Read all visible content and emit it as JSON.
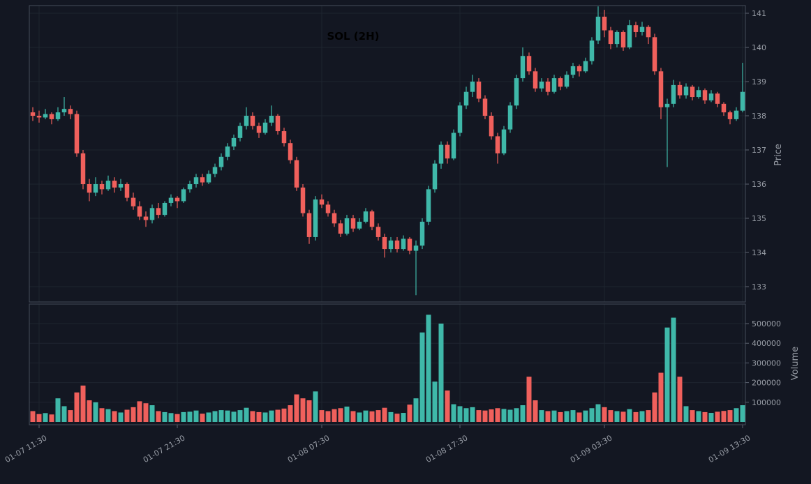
{
  "chart_data": {
    "type": "candlestick",
    "title": "SOL (2H)",
    "symbol": "SOL",
    "interval": "2H",
    "price_axis": {
      "label": "Price",
      "side": "right",
      "ticks": [
        133,
        134,
        135,
        136,
        137,
        138,
        139,
        140,
        141
      ],
      "ylim": [
        132.55,
        141.3
      ]
    },
    "volume_axis": {
      "label": "Volume",
      "side": "right",
      "ticks": [
        100000,
        200000,
        300000,
        400000,
        500000
      ],
      "ylim": [
        0,
        600000
      ]
    },
    "x_axis": {
      "tick_labels": [
        "01-07 11:30",
        "01-07 21:30",
        "01-08 07:30",
        "01-08 17:30",
        "01-09 03:30",
        "01-09 13:30"
      ],
      "tick_candle_indices": [
        1,
        23,
        46,
        68,
        91,
        113
      ],
      "label_rotation_deg": 30
    },
    "colors": {
      "up": "#3fb8a9",
      "down": "#f0605c",
      "background": "#131722",
      "grid": "#1e242f",
      "spine": "#454c59",
      "tick_dash": "#5c6370",
      "tick_text": "#989da6",
      "title_text": "#000000"
    },
    "candle_fields": [
      "open",
      "high",
      "low",
      "close",
      "volume"
    ],
    "candles": [
      [
        138.1,
        138.25,
        137.85,
        138.0,
        55000
      ],
      [
        138.0,
        138.15,
        137.8,
        137.95,
        40000
      ],
      [
        137.95,
        138.2,
        137.9,
        138.05,
        45000
      ],
      [
        138.05,
        138.1,
        137.75,
        137.9,
        38000
      ],
      [
        137.9,
        138.25,
        137.85,
        138.1,
        120000
      ],
      [
        138.1,
        138.55,
        138.0,
        138.2,
        80000
      ],
      [
        138.2,
        138.3,
        137.9,
        138.05,
        60000
      ],
      [
        138.05,
        138.15,
        136.8,
        136.9,
        150000
      ],
      [
        136.9,
        137.0,
        135.85,
        136.0,
        185000
      ],
      [
        136.0,
        136.15,
        135.5,
        135.75,
        110000
      ],
      [
        135.75,
        136.2,
        135.65,
        136.0,
        100000
      ],
      [
        136.0,
        136.1,
        135.7,
        135.85,
        70000
      ],
      [
        135.85,
        136.25,
        135.8,
        136.1,
        65000
      ],
      [
        136.1,
        136.2,
        135.75,
        135.9,
        55000
      ],
      [
        135.9,
        136.15,
        135.8,
        136.0,
        48000
      ],
      [
        136.0,
        136.05,
        135.5,
        135.6,
        62000
      ],
      [
        135.6,
        135.75,
        135.25,
        135.35,
        75000
      ],
      [
        135.35,
        135.5,
        134.95,
        135.05,
        105000
      ],
      [
        135.05,
        135.2,
        134.75,
        134.95,
        95000
      ],
      [
        134.95,
        135.4,
        134.85,
        135.3,
        85000
      ],
      [
        135.3,
        135.45,
        135.0,
        135.1,
        55000
      ],
      [
        135.1,
        135.5,
        135.05,
        135.45,
        50000
      ],
      [
        135.45,
        135.7,
        135.35,
        135.6,
        45000
      ],
      [
        135.6,
        135.65,
        135.3,
        135.5,
        40000
      ],
      [
        135.5,
        135.9,
        135.45,
        135.85,
        50000
      ],
      [
        135.85,
        136.1,
        135.75,
        136.0,
        52000
      ],
      [
        136.0,
        136.3,
        135.9,
        136.2,
        58000
      ],
      [
        136.2,
        136.3,
        135.95,
        136.05,
        42000
      ],
      [
        136.05,
        136.4,
        136.0,
        136.3,
        48000
      ],
      [
        136.3,
        136.6,
        136.2,
        136.5,
        55000
      ],
      [
        136.5,
        136.9,
        136.4,
        136.8,
        60000
      ],
      [
        136.8,
        137.2,
        136.7,
        137.1,
        58000
      ],
      [
        137.1,
        137.45,
        137.0,
        137.35,
        52000
      ],
      [
        137.35,
        137.8,
        137.25,
        137.7,
        60000
      ],
      [
        137.7,
        138.25,
        137.6,
        138.0,
        72000
      ],
      [
        138.0,
        138.1,
        137.6,
        137.7,
        55000
      ],
      [
        137.7,
        137.8,
        137.35,
        137.5,
        50000
      ],
      [
        137.5,
        137.9,
        137.45,
        137.8,
        48000
      ],
      [
        137.8,
        138.3,
        137.7,
        138.0,
        58000
      ],
      [
        138.0,
        138.05,
        137.45,
        137.55,
        62000
      ],
      [
        137.55,
        137.65,
        137.1,
        137.2,
        68000
      ],
      [
        137.2,
        137.3,
        136.6,
        136.7,
        85000
      ],
      [
        136.7,
        136.8,
        135.8,
        135.9,
        140000
      ],
      [
        135.9,
        136.0,
        135.05,
        135.15,
        120000
      ],
      [
        135.15,
        135.25,
        134.25,
        134.45,
        110000
      ],
      [
        134.45,
        135.65,
        134.35,
        135.55,
        155000
      ],
      [
        135.55,
        135.7,
        135.3,
        135.4,
        60000
      ],
      [
        135.4,
        135.5,
        135.05,
        135.15,
        55000
      ],
      [
        135.15,
        135.25,
        134.75,
        134.85,
        65000
      ],
      [
        134.85,
        134.95,
        134.45,
        134.55,
        70000
      ],
      [
        134.55,
        135.1,
        134.5,
        135.0,
        78000
      ],
      [
        135.0,
        135.1,
        134.6,
        134.7,
        55000
      ],
      [
        134.7,
        135.0,
        134.65,
        134.9,
        48000
      ],
      [
        134.9,
        135.3,
        134.85,
        135.2,
        58000
      ],
      [
        135.2,
        135.25,
        134.65,
        134.75,
        54000
      ],
      [
        134.75,
        134.85,
        134.35,
        134.45,
        60000
      ],
      [
        134.45,
        134.55,
        133.85,
        134.1,
        72000
      ],
      [
        134.1,
        134.45,
        134.0,
        134.35,
        50000
      ],
      [
        134.35,
        134.45,
        134.0,
        134.1,
        42000
      ],
      [
        134.1,
        134.5,
        134.05,
        134.4,
        46000
      ],
      [
        134.4,
        134.45,
        133.95,
        134.05,
        88000
      ],
      [
        134.05,
        134.35,
        132.75,
        134.2,
        120000
      ],
      [
        134.2,
        135.0,
        134.1,
        134.9,
        455000
      ],
      [
        134.9,
        135.95,
        134.8,
        135.85,
        545000
      ],
      [
        135.85,
        136.7,
        135.75,
        136.6,
        205000
      ],
      [
        136.6,
        137.25,
        136.45,
        137.15,
        500000
      ],
      [
        137.15,
        137.25,
        136.6,
        136.75,
        160000
      ],
      [
        136.75,
        137.6,
        136.7,
        137.5,
        90000
      ],
      [
        137.5,
        138.4,
        137.4,
        138.3,
        80000
      ],
      [
        138.3,
        138.85,
        138.2,
        138.7,
        70000
      ],
      [
        138.7,
        139.2,
        138.55,
        139.0,
        75000
      ],
      [
        139.0,
        139.1,
        138.4,
        138.5,
        60000
      ],
      [
        138.5,
        138.6,
        137.9,
        138.0,
        58000
      ],
      [
        138.0,
        138.1,
        137.3,
        137.4,
        64000
      ],
      [
        137.4,
        137.5,
        136.6,
        136.9,
        70000
      ],
      [
        136.9,
        137.7,
        136.85,
        137.6,
        66000
      ],
      [
        137.6,
        138.4,
        137.5,
        138.3,
        62000
      ],
      [
        138.3,
        139.2,
        138.2,
        139.1,
        70000
      ],
      [
        139.1,
        140.0,
        139.0,
        139.75,
        85000
      ],
      [
        139.75,
        139.85,
        139.2,
        139.3,
        230000
      ],
      [
        139.3,
        139.4,
        138.7,
        138.8,
        110000
      ],
      [
        138.8,
        139.1,
        138.7,
        139.0,
        60000
      ],
      [
        139.0,
        139.1,
        138.6,
        138.7,
        55000
      ],
      [
        138.7,
        139.2,
        138.65,
        139.1,
        58000
      ],
      [
        139.1,
        139.15,
        138.75,
        138.85,
        50000
      ],
      [
        138.85,
        139.3,
        138.8,
        139.2,
        55000
      ],
      [
        139.2,
        139.55,
        139.1,
        139.45,
        60000
      ],
      [
        139.45,
        139.5,
        139.15,
        139.3,
        48000
      ],
      [
        139.3,
        139.7,
        139.25,
        139.6,
        58000
      ],
      [
        139.6,
        140.3,
        139.5,
        140.2,
        70000
      ],
      [
        140.2,
        141.2,
        140.1,
        140.9,
        90000
      ],
      [
        140.9,
        141.1,
        140.3,
        140.5,
        75000
      ],
      [
        140.5,
        140.6,
        139.95,
        140.1,
        60000
      ],
      [
        140.1,
        140.5,
        140.0,
        140.45,
        55000
      ],
      [
        140.45,
        140.5,
        139.9,
        140.0,
        52000
      ],
      [
        140.0,
        140.8,
        139.95,
        140.65,
        65000
      ],
      [
        140.65,
        140.75,
        140.3,
        140.45,
        50000
      ],
      [
        140.45,
        140.75,
        140.35,
        140.6,
        55000
      ],
      [
        140.6,
        140.65,
        140.1,
        140.3,
        60000
      ],
      [
        140.3,
        140.4,
        139.2,
        139.3,
        150000
      ],
      [
        139.3,
        139.4,
        137.9,
        138.25,
        250000
      ],
      [
        138.25,
        138.5,
        136.5,
        138.35,
        480000
      ],
      [
        138.35,
        139.05,
        138.25,
        138.9,
        530000
      ],
      [
        138.9,
        139.0,
        138.5,
        138.6,
        230000
      ],
      [
        138.6,
        138.95,
        138.5,
        138.85,
        80000
      ],
      [
        138.85,
        138.9,
        138.45,
        138.55,
        60000
      ],
      [
        138.55,
        138.85,
        138.5,
        138.75,
        55000
      ],
      [
        138.75,
        138.8,
        138.35,
        138.45,
        50000
      ],
      [
        138.45,
        138.75,
        138.4,
        138.65,
        46000
      ],
      [
        138.65,
        138.7,
        138.25,
        138.35,
        52000
      ],
      [
        138.35,
        138.4,
        138.0,
        138.1,
        56000
      ],
      [
        138.1,
        138.15,
        137.75,
        137.9,
        60000
      ],
      [
        137.9,
        138.25,
        137.85,
        138.15,
        70000
      ],
      [
        138.15,
        139.55,
        138.1,
        138.7,
        85000
      ]
    ]
  }
}
